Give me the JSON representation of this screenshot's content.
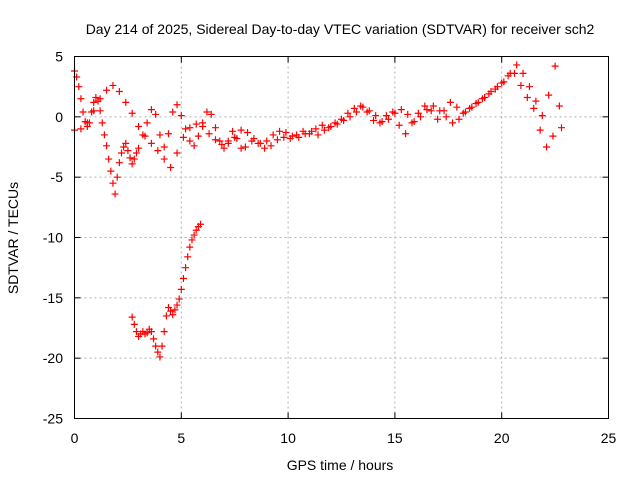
{
  "chart_data": {
    "type": "scatter",
    "title": "Day 214 of 2025, Sidereal Day-to-day VTEC variation (SDTVAR) for receiver sch2",
    "xlabel": "GPS time / hours",
    "ylabel": "SDTVAR / TECUs",
    "xlim": [
      0,
      25
    ],
    "ylim": [
      -25,
      5
    ],
    "xticks": [
      0,
      5,
      10,
      15,
      20,
      25
    ],
    "yticks": [
      5,
      0,
      -5,
      -10,
      -15,
      -20,
      -25
    ],
    "grid": true,
    "marker": "plus",
    "color": "#ff0000",
    "series": [
      {
        "name": "main band",
        "x": [
          0.0,
          0.1,
          0.2,
          0.3,
          0.4,
          0.5,
          0.6,
          0.7,
          0.8,
          0.9,
          1.0,
          1.1,
          1.2,
          1.3,
          1.4,
          1.5,
          1.6,
          1.7,
          1.8,
          1.9,
          2.0,
          2.1,
          2.2,
          2.3,
          2.4,
          2.5,
          2.6,
          2.7,
          2.8,
          2.9,
          3.0,
          3.2,
          3.4,
          3.6,
          3.8,
          4.0,
          4.2,
          4.4,
          4.6,
          4.8,
          5.0,
          5.2,
          5.4,
          5.6,
          5.8,
          6.0,
          6.2,
          6.4,
          6.6,
          6.8,
          7.0,
          7.2,
          7.4,
          7.6,
          7.8,
          8.0,
          8.3,
          8.6,
          8.9,
          9.2,
          9.5,
          9.8,
          10.1,
          10.4,
          10.7,
          11.0,
          11.3,
          11.6,
          11.9,
          12.2,
          12.5,
          12.8,
          13.1,
          13.4,
          13.7,
          14.0,
          14.3,
          14.6,
          14.9,
          15.2,
          15.5,
          15.8,
          16.1,
          16.4,
          16.7,
          17.0,
          17.3,
          17.6,
          17.9,
          18.2,
          18.5,
          18.8,
          19.1,
          19.4,
          19.7,
          20.0,
          20.3,
          20.6,
          20.9,
          21.2,
          21.5,
          21.8,
          22.1,
          22.4,
          22.7
        ],
        "y": [
          3.8,
          3.3,
          2.5,
          1.5,
          0.4,
          -0.4,
          -0.8,
          -0.5,
          0.4,
          1.2,
          1.6,
          1.3,
          0.5,
          -0.5,
          -1.5,
          -2.4,
          -3.5,
          -4.5,
          -5.5,
          -6.4,
          -5.0,
          -3.8,
          -3.0,
          -2.5,
          -2.2,
          -2.8,
          -3.4,
          -3.9,
          -3.5,
          -3.0,
          -2.6,
          -1.5,
          -0.5,
          0.6,
          0.2,
          -1.5,
          -2.5,
          -1.4,
          0.4,
          1.0,
          0.1,
          -1.0,
          -2.0,
          -2.4,
          -1.6,
          -0.5,
          0.4,
          0.2,
          -0.9,
          -2.0,
          -2.6,
          -2.0,
          -1.2,
          -1.8,
          -2.6,
          -2.5,
          -2.0,
          -2.2,
          -2.6,
          -2.4,
          -1.9,
          -1.7,
          -1.8,
          -1.5,
          -1.2,
          -1.4,
          -1.0,
          -0.7,
          -0.9,
          -0.5,
          -0.2,
          0.3,
          0.7,
          0.9,
          0.4,
          -0.3,
          -0.5,
          0.1,
          0.4,
          -0.7,
          -1.4,
          -0.5,
          0.3,
          0.9,
          0.5,
          -0.2,
          0.5,
          1.2,
          0.8,
          0.3,
          0.7,
          1.1,
          1.5,
          1.9,
          2.3,
          2.8,
          3.4,
          3.6,
          2.6,
          1.6,
          0.7,
          -1.1,
          -2.5,
          -1.6,
          0.9
        ]
      },
      {
        "name": "upper band",
        "x": [
          0.0,
          0.3,
          0.6,
          0.9,
          1.2,
          1.5,
          1.8,
          2.1,
          2.4,
          2.7,
          3.0,
          3.3,
          3.6,
          3.9,
          4.2,
          4.5,
          4.8,
          5.1,
          5.4,
          5.7,
          6.0,
          6.3,
          6.6,
          6.9,
          7.2,
          7.5,
          7.8,
          8.1,
          8.4,
          8.7,
          9.0,
          9.3,
          9.6,
          9.9,
          10.2,
          10.5,
          10.8,
          11.1,
          11.4,
          11.7,
          12.0,
          12.3,
          12.6,
          12.9,
          13.2,
          13.5,
          13.8,
          14.1,
          14.4,
          14.7,
          15.0,
          15.3,
          15.6,
          15.9,
          16.2,
          16.5,
          16.8,
          17.1,
          17.4,
          17.7,
          18.0,
          18.3,
          18.6,
          18.9,
          19.2,
          19.5,
          19.8,
          20.1,
          20.4,
          20.7,
          21.0,
          21.3,
          21.6,
          21.9,
          22.2,
          22.5,
          22.8
        ],
        "y": [
          -1.1,
          -1.0,
          -0.5,
          0.5,
          1.5,
          2.2,
          2.6,
          2.1,
          1.2,
          0.3,
          -0.8,
          -1.6,
          -2.2,
          -2.8,
          -3.5,
          -4.2,
          -3.0,
          -1.7,
          -0.9,
          -0.6,
          -0.8,
          -1.4,
          -1.9,
          -2.3,
          -2.2,
          -1.7,
          -1.1,
          -1.3,
          -1.8,
          -2.2,
          -2.0,
          -1.5,
          -1.2,
          -1.3,
          -1.6,
          -1.7,
          -1.4,
          -1.2,
          -1.5,
          -1.1,
          -0.8,
          -0.6,
          -0.3,
          0.0,
          0.4,
          0.8,
          0.5,
          0.1,
          -0.4,
          -0.2,
          0.3,
          0.6,
          0.2,
          -0.4,
          0.0,
          0.6,
          0.9,
          0.5,
          0.0,
          -0.5,
          -0.2,
          0.4,
          0.8,
          1.2,
          1.6,
          2.1,
          2.5,
          2.9,
          3.6,
          4.3,
          3.6,
          2.5,
          1.3,
          0.1,
          1.8,
          4.2,
          -0.9
        ]
      },
      {
        "name": "lower excursion",
        "x": [
          2.7,
          2.8,
          2.9,
          3.0,
          3.1,
          3.2,
          3.3,
          3.4,
          3.5,
          3.6,
          3.7,
          3.8,
          3.9,
          4.0,
          4.1,
          4.2,
          4.3,
          4.4,
          4.5,
          4.6,
          4.7,
          4.8,
          4.9,
          5.0,
          5.1,
          5.2,
          5.3,
          5.4,
          5.5,
          5.6,
          5.7,
          5.8,
          5.9
        ],
        "y": [
          -16.6,
          -17.2,
          -17.8,
          -18.2,
          -18.0,
          -17.8,
          -18.0,
          -17.9,
          -17.6,
          -17.8,
          -18.4,
          -19.0,
          -19.5,
          -19.9,
          -19.0,
          -17.8,
          -16.5,
          -15.8,
          -16.1,
          -16.4,
          -16.0,
          -15.6,
          -15.1,
          -14.3,
          -13.4,
          -12.5,
          -11.6,
          -10.8,
          -10.2,
          -9.8,
          -9.4,
          -9.1,
          -8.9
        ]
      }
    ]
  }
}
